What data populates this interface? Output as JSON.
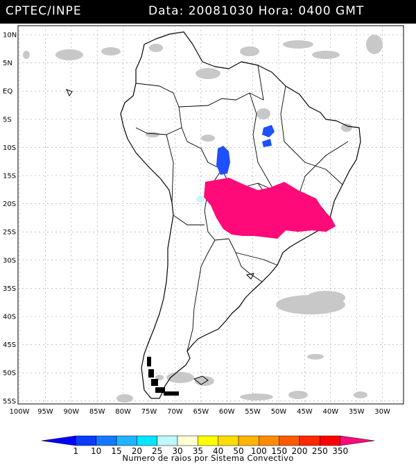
{
  "header": {
    "title_left": "CPTEC/INPE",
    "title_right": "Data: 20081030 Hora: 0400 GMT"
  },
  "map": {
    "lat_labels": [
      "10N",
      "5N",
      "EQ",
      "5S",
      "10S",
      "15S",
      "20S",
      "25S",
      "30S",
      "35S",
      "40S",
      "45S",
      "50S",
      "55S"
    ],
    "lon_labels": [
      "100W",
      "95W",
      "90W",
      "85W",
      "80W",
      "75W",
      "70W",
      "65W",
      "60W",
      "55W",
      "50W",
      "45W",
      "40W",
      "35W",
      "30W"
    ],
    "colors": {
      "land_border": "#000000",
      "cloud_gray": "#c8c8c8",
      "flash_magenta": "#ff0a78",
      "flash_blue": "#1e50ff",
      "flash_cyan": "#c8f5ff"
    }
  },
  "legend": {
    "ticks": [
      "1",
      "10",
      "15",
      "20",
      "25",
      "30",
      "35",
      "40",
      "50",
      "100",
      "150",
      "200",
      "250",
      "350"
    ],
    "colors": [
      "#0000ff",
      "#0a3cff",
      "#1478ff",
      "#1eb4ff",
      "#00e6ff",
      "#bff7ff",
      "#ffffd2",
      "#ffff00",
      "#ffdc00",
      "#ffb400",
      "#ff8c00",
      "#ff5a00",
      "#ff2800",
      "#ff0000",
      "#ff0a78"
    ],
    "caption": "Numero de raios por Sistema Convectivo"
  }
}
